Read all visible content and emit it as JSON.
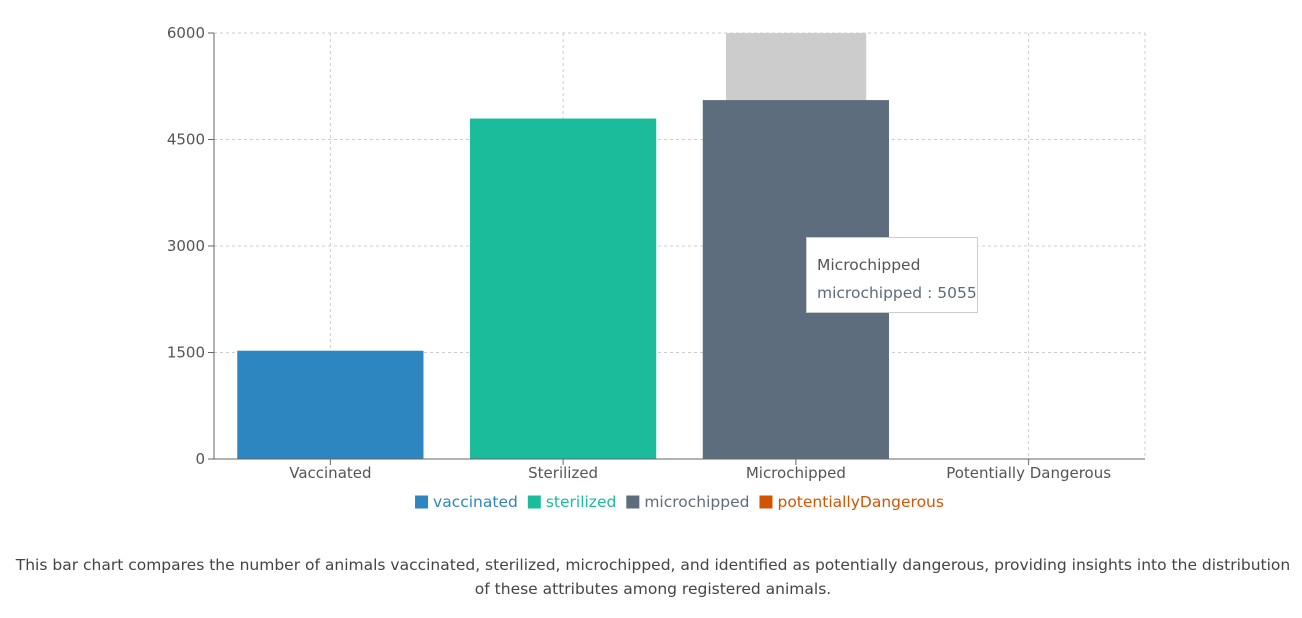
{
  "chart_data": {
    "type": "bar",
    "categories": [
      "Vaccinated",
      "Sterilized",
      "Microchipped",
      "Potentially Dangerous"
    ],
    "series": [
      {
        "name": "vaccinated",
        "color": "#2e86c1",
        "values": [
          1525,
          null,
          null,
          null
        ]
      },
      {
        "name": "sterilized",
        "color": "#1abc9c",
        "values": [
          null,
          4795,
          null,
          null
        ]
      },
      {
        "name": "microchipped",
        "color": "#5d6d7e",
        "values": [
          null,
          null,
          5055,
          null
        ]
      },
      {
        "name": "potentiallyDangerous",
        "color": "#d35400",
        "values": [
          null,
          null,
          null,
          0
        ]
      }
    ],
    "yticks": [
      0,
      1500,
      3000,
      4500,
      6000
    ],
    "ylim": [
      0,
      6000
    ],
    "grid": true,
    "legend_position": "bottom",
    "highlighted_category": "Microchipped",
    "highlight_color": "#cccccc"
  },
  "tooltip": {
    "title": "Microchipped",
    "series_name": "microchipped",
    "separator": " : ",
    "value": "5055"
  },
  "caption": "This bar chart compares the number of animals vaccinated, sterilized, microchipped, and identified as potentially dangerous, providing insights into the distribution of these attributes among registered animals."
}
